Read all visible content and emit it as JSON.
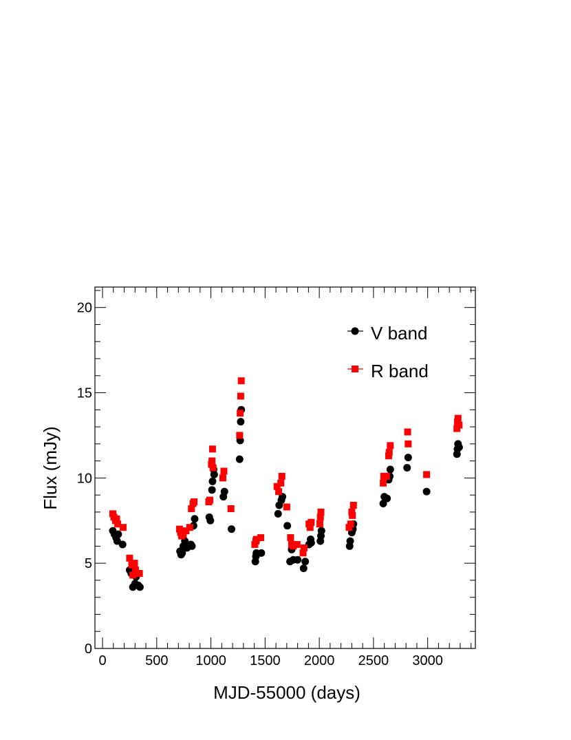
{
  "chart_data": {
    "type": "scatter",
    "xlabel": "MJD-55000 (days)",
    "ylabel": "Flux (mJy)",
    "xlim": [
      -70,
      3440
    ],
    "ylim": [
      0,
      21.2
    ],
    "x_ticks": [
      0,
      500,
      1000,
      1500,
      2000,
      2500,
      3000
    ],
    "y_ticks": [
      0,
      5,
      10,
      15,
      20
    ],
    "legend_position": "top-right",
    "grid": false,
    "series": [
      {
        "name": "V band",
        "marker": "circle",
        "color": "#000000",
        "points": [
          [
            95,
            6.9
          ],
          [
            110,
            6.7
          ],
          [
            125,
            6.5
          ],
          [
            135,
            6.3
          ],
          [
            145,
            6.7
          ],
          [
            185,
            6.1
          ],
          [
            250,
            4.6
          ],
          [
            265,
            4.4
          ],
          [
            280,
            3.6
          ],
          [
            300,
            3.8
          ],
          [
            310,
            4.2
          ],
          [
            330,
            3.7
          ],
          [
            345,
            3.6
          ],
          [
            715,
            5.7
          ],
          [
            725,
            5.5
          ],
          [
            735,
            5.6
          ],
          [
            745,
            6.0
          ],
          [
            760,
            6.3
          ],
          [
            780,
            5.9
          ],
          [
            815,
            6.1
          ],
          [
            825,
            6.0
          ],
          [
            840,
            7.2
          ],
          [
            850,
            7.6
          ],
          [
            985,
            7.7
          ],
          [
            995,
            7.5
          ],
          [
            1010,
            9.3
          ],
          [
            1015,
            9.8
          ],
          [
            1025,
            10.5
          ],
          [
            1030,
            10.2
          ],
          [
            1115,
            8.9
          ],
          [
            1125,
            9.2
          ],
          [
            1190,
            7.0
          ],
          [
            1265,
            11.1
          ],
          [
            1270,
            12.2
          ],
          [
            1275,
            13.3
          ],
          [
            1280,
            14.0
          ],
          [
            1410,
            5.1
          ],
          [
            1415,
            5.4
          ],
          [
            1420,
            5.6
          ],
          [
            1465,
            5.6
          ],
          [
            1620,
            7.9
          ],
          [
            1630,
            8.4
          ],
          [
            1650,
            8.7
          ],
          [
            1660,
            8.9
          ],
          [
            1705,
            7.2
          ],
          [
            1730,
            5.1
          ],
          [
            1745,
            5.8
          ],
          [
            1760,
            5.2
          ],
          [
            1800,
            5.2
          ],
          [
            1855,
            4.7
          ],
          [
            1870,
            5.1
          ],
          [
            1905,
            6.1
          ],
          [
            1920,
            6.4
          ],
          [
            1925,
            6.2
          ],
          [
            2010,
            6.3
          ],
          [
            2015,
            6.6
          ],
          [
            2020,
            6.9
          ],
          [
            2280,
            6.0
          ],
          [
            2285,
            6.3
          ],
          [
            2300,
            6.8
          ],
          [
            2310,
            7.0
          ],
          [
            2315,
            7.3
          ],
          [
            2590,
            8.5
          ],
          [
            2600,
            8.9
          ],
          [
            2625,
            8.8
          ],
          [
            2640,
            9.9
          ],
          [
            2650,
            10.1
          ],
          [
            2655,
            10.5
          ],
          [
            2810,
            10.6
          ],
          [
            2820,
            11.2
          ],
          [
            2990,
            9.2
          ],
          [
            3270,
            11.4
          ],
          [
            3275,
            11.7
          ],
          [
            3280,
            12.0
          ],
          [
            3290,
            11.8
          ]
        ]
      },
      {
        "name": "R band",
        "marker": "square",
        "color": "#ff0000",
        "points": [
          [
            95,
            7.9
          ],
          [
            105,
            7.7
          ],
          [
            120,
            7.5
          ],
          [
            130,
            7.6
          ],
          [
            140,
            7.3
          ],
          [
            190,
            7.1
          ],
          [
            250,
            5.3
          ],
          [
            270,
            4.9
          ],
          [
            280,
            4.3
          ],
          [
            295,
            5.0
          ],
          [
            305,
            4.6
          ],
          [
            320,
            4.4
          ],
          [
            340,
            4.4
          ],
          [
            710,
            7.0
          ],
          [
            720,
            6.8
          ],
          [
            730,
            6.6
          ],
          [
            745,
            6.7
          ],
          [
            770,
            6.9
          ],
          [
            805,
            7.1
          ],
          [
            820,
            8.2
          ],
          [
            835,
            8.5
          ],
          [
            845,
            8.6
          ],
          [
            980,
            8.6
          ],
          [
            990,
            8.7
          ],
          [
            1005,
            10.8
          ],
          [
            1010,
            11.0
          ],
          [
            1015,
            11.7
          ],
          [
            1020,
            10.6
          ],
          [
            1110,
            10.0
          ],
          [
            1120,
            10.4
          ],
          [
            1185,
            8.2
          ],
          [
            1265,
            12.5
          ],
          [
            1270,
            13.8
          ],
          [
            1275,
            14.8
          ],
          [
            1280,
            15.7
          ],
          [
            1405,
            6.1
          ],
          [
            1415,
            6.3
          ],
          [
            1420,
            6.4
          ],
          [
            1460,
            6.5
          ],
          [
            1610,
            9.5
          ],
          [
            1625,
            9.2
          ],
          [
            1645,
            9.7
          ],
          [
            1655,
            10.1
          ],
          [
            1700,
            8.3
          ],
          [
            1735,
            6.5
          ],
          [
            1745,
            6.1
          ],
          [
            1760,
            6.0
          ],
          [
            1795,
            6.1
          ],
          [
            1850,
            5.6
          ],
          [
            1860,
            5.9
          ],
          [
            1905,
            7.3
          ],
          [
            1915,
            7.1
          ],
          [
            1925,
            7.4
          ],
          [
            2005,
            7.3
          ],
          [
            2010,
            7.7
          ],
          [
            2015,
            8.0
          ],
          [
            2275,
            7.1
          ],
          [
            2290,
            7.3
          ],
          [
            2300,
            8.0
          ],
          [
            2305,
            7.8
          ],
          [
            2315,
            8.4
          ],
          [
            2590,
            9.7
          ],
          [
            2595,
            10.1
          ],
          [
            2620,
            10.1
          ],
          [
            2640,
            11.3
          ],
          [
            2645,
            11.5
          ],
          [
            2655,
            11.9
          ],
          [
            2815,
            12.7
          ],
          [
            2820,
            12.0
          ],
          [
            2990,
            10.2
          ],
          [
            3270,
            12.9
          ],
          [
            3275,
            13.3
          ],
          [
            3280,
            13.5
          ],
          [
            3290,
            13.1
          ]
        ]
      }
    ]
  }
}
